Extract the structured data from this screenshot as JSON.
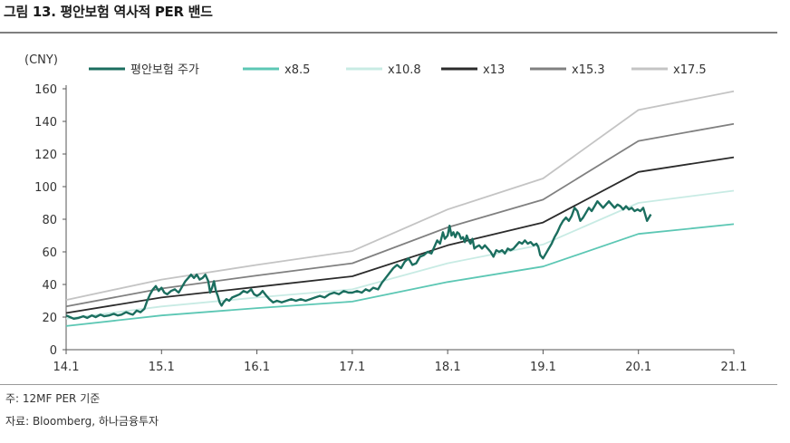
{
  "header": {
    "title": "그림 13. 평안보험 역사적 PER 밴드"
  },
  "notes": {
    "basis": "주: 12MF PER 기준",
    "source": "자료: Bloomberg, 하나금융투자"
  },
  "chart_data": {
    "type": "line",
    "unit_label": "(CNY)",
    "title": "",
    "xlabel": "",
    "ylabel": "",
    "ylim": [
      0,
      160
    ],
    "yticks": [
      0,
      20,
      40,
      60,
      80,
      100,
      120,
      140,
      160
    ],
    "xlim": [
      2014.0,
      2021.0
    ],
    "xticks": [
      {
        "x": 2014.0,
        "label": "14.1"
      },
      {
        "x": 2015.0,
        "label": "15.1"
      },
      {
        "x": 2016.0,
        "label": "16.1"
      },
      {
        "x": 2017.0,
        "label": "17.1"
      },
      {
        "x": 2018.0,
        "label": "18.1"
      },
      {
        "x": 2019.0,
        "label": "19.1"
      },
      {
        "x": 2020.0,
        "label": "20.1"
      },
      {
        "x": 2021.0,
        "label": "21.1"
      }
    ],
    "grid": false,
    "legend_position": "top",
    "series": [
      {
        "name": "평안보험 주가",
        "color": "#1b6e5f",
        "width": 2.4,
        "points": [
          [
            2014.0,
            21
          ],
          [
            2014.04,
            20
          ],
          [
            2014.08,
            19
          ],
          [
            2014.13,
            19.5
          ],
          [
            2014.18,
            20.5
          ],
          [
            2014.22,
            19.5
          ],
          [
            2014.27,
            21
          ],
          [
            2014.31,
            20
          ],
          [
            2014.36,
            21.5
          ],
          [
            2014.4,
            20.5
          ],
          [
            2014.45,
            21
          ],
          [
            2014.5,
            22
          ],
          [
            2014.54,
            21
          ],
          [
            2014.58,
            21.5
          ],
          [
            2014.63,
            23
          ],
          [
            2014.67,
            22
          ],
          [
            2014.7,
            21.5
          ],
          [
            2014.74,
            24
          ],
          [
            2014.78,
            23
          ],
          [
            2014.82,
            25
          ],
          [
            2014.85,
            30
          ],
          [
            2014.88,
            34
          ],
          [
            2014.91,
            37
          ],
          [
            2014.94,
            39
          ],
          [
            2014.97,
            36
          ],
          [
            2015.0,
            38
          ],
          [
            2015.03,
            35
          ],
          [
            2015.06,
            34
          ],
          [
            2015.1,
            36
          ],
          [
            2015.14,
            37
          ],
          [
            2015.18,
            35
          ],
          [
            2015.22,
            39
          ],
          [
            2015.25,
            42
          ],
          [
            2015.28,
            44
          ],
          [
            2015.31,
            46
          ],
          [
            2015.34,
            44
          ],
          [
            2015.37,
            46
          ],
          [
            2015.4,
            43
          ],
          [
            2015.43,
            44
          ],
          [
            2015.46,
            46
          ],
          [
            2015.49,
            42
          ],
          [
            2015.51,
            35
          ],
          [
            2015.53,
            38
          ],
          [
            2015.55,
            42
          ],
          [
            2015.57,
            36
          ],
          [
            2015.59,
            33
          ],
          [
            2015.61,
            29
          ],
          [
            2015.63,
            27
          ],
          [
            2015.65,
            29
          ],
          [
            2015.68,
            31
          ],
          [
            2015.71,
            30
          ],
          [
            2015.74,
            32
          ],
          [
            2015.78,
            33
          ],
          [
            2015.82,
            34
          ],
          [
            2015.86,
            36
          ],
          [
            2015.9,
            35
          ],
          [
            2015.94,
            37
          ],
          [
            2015.97,
            34
          ],
          [
            2016.0,
            33
          ],
          [
            2016.03,
            34
          ],
          [
            2016.06,
            36
          ],
          [
            2016.1,
            33
          ],
          [
            2016.13,
            31
          ],
          [
            2016.17,
            29
          ],
          [
            2016.21,
            30
          ],
          [
            2016.26,
            29
          ],
          [
            2016.31,
            30
          ],
          [
            2016.36,
            31
          ],
          [
            2016.41,
            30
          ],
          [
            2016.46,
            31
          ],
          [
            2016.51,
            30
          ],
          [
            2016.56,
            31
          ],
          [
            2016.61,
            32
          ],
          [
            2016.66,
            33
          ],
          [
            2016.71,
            32
          ],
          [
            2016.76,
            34
          ],
          [
            2016.81,
            35
          ],
          [
            2016.86,
            34
          ],
          [
            2016.91,
            36
          ],
          [
            2016.96,
            35
          ],
          [
            2017.0,
            35
          ],
          [
            2017.05,
            36
          ],
          [
            2017.1,
            35
          ],
          [
            2017.14,
            37
          ],
          [
            2017.18,
            36
          ],
          [
            2017.22,
            38
          ],
          [
            2017.27,
            37
          ],
          [
            2017.31,
            41
          ],
          [
            2017.35,
            44
          ],
          [
            2017.39,
            47
          ],
          [
            2017.43,
            50
          ],
          [
            2017.47,
            52
          ],
          [
            2017.51,
            50
          ],
          [
            2017.55,
            54
          ],
          [
            2017.59,
            56
          ],
          [
            2017.63,
            52
          ],
          [
            2017.67,
            53
          ],
          [
            2017.71,
            57
          ],
          [
            2017.75,
            58
          ],
          [
            2017.79,
            60
          ],
          [
            2017.83,
            59
          ],
          [
            2017.86,
            63
          ],
          [
            2017.89,
            67
          ],
          [
            2017.92,
            65
          ],
          [
            2017.95,
            72
          ],
          [
            2017.97,
            68
          ],
          [
            2018.0,
            70
          ],
          [
            2018.02,
            76
          ],
          [
            2018.04,
            70
          ],
          [
            2018.06,
            72
          ],
          [
            2018.08,
            69
          ],
          [
            2018.1,
            72
          ],
          [
            2018.12,
            71
          ],
          [
            2018.14,
            68
          ],
          [
            2018.16,
            69
          ],
          [
            2018.18,
            66
          ],
          [
            2018.2,
            70
          ],
          [
            2018.22,
            67
          ],
          [
            2018.24,
            65
          ],
          [
            2018.26,
            68
          ],
          [
            2018.28,
            62
          ],
          [
            2018.3,
            63
          ],
          [
            2018.33,
            64
          ],
          [
            2018.36,
            62
          ],
          [
            2018.39,
            64
          ],
          [
            2018.42,
            62
          ],
          [
            2018.45,
            60
          ],
          [
            2018.48,
            57
          ],
          [
            2018.51,
            61
          ],
          [
            2018.54,
            60
          ],
          [
            2018.57,
            61
          ],
          [
            2018.6,
            59
          ],
          [
            2018.63,
            62
          ],
          [
            2018.66,
            61
          ],
          [
            2018.69,
            62
          ],
          [
            2018.72,
            64
          ],
          [
            2018.75,
            66
          ],
          [
            2018.78,
            65
          ],
          [
            2018.81,
            67
          ],
          [
            2018.84,
            65
          ],
          [
            2018.87,
            66
          ],
          [
            2018.9,
            64
          ],
          [
            2018.93,
            65
          ],
          [
            2018.95,
            63
          ],
          [
            2018.97,
            58
          ],
          [
            2019.0,
            56
          ],
          [
            2019.03,
            59
          ],
          [
            2019.06,
            62
          ],
          [
            2019.09,
            65
          ],
          [
            2019.12,
            69
          ],
          [
            2019.15,
            72
          ],
          [
            2019.18,
            76
          ],
          [
            2019.21,
            79
          ],
          [
            2019.24,
            81
          ],
          [
            2019.27,
            79
          ],
          [
            2019.3,
            82
          ],
          [
            2019.33,
            87
          ],
          [
            2019.36,
            85
          ],
          [
            2019.39,
            79
          ],
          [
            2019.42,
            81
          ],
          [
            2019.45,
            84
          ],
          [
            2019.48,
            87
          ],
          [
            2019.51,
            85
          ],
          [
            2019.54,
            88
          ],
          [
            2019.57,
            91
          ],
          [
            2019.6,
            89
          ],
          [
            2019.63,
            87
          ],
          [
            2019.66,
            89
          ],
          [
            2019.69,
            91
          ],
          [
            2019.72,
            89
          ],
          [
            2019.75,
            87
          ],
          [
            2019.78,
            89
          ],
          [
            2019.81,
            88
          ],
          [
            2019.84,
            86
          ],
          [
            2019.87,
            88
          ],
          [
            2019.9,
            86
          ],
          [
            2019.93,
            87
          ],
          [
            2019.96,
            85
          ],
          [
            2019.99,
            86
          ],
          [
            2020.02,
            85
          ],
          [
            2020.05,
            87
          ],
          [
            2020.07,
            83
          ],
          [
            2020.09,
            79
          ],
          [
            2020.11,
            81
          ],
          [
            2020.13,
            83
          ]
        ]
      },
      {
        "name": "x8.5",
        "color": "#5cc7b4",
        "width": 1.8,
        "points": [
          [
            2014,
            14.5
          ],
          [
            2015,
            21
          ],
          [
            2016,
            25.5
          ],
          [
            2017,
            29.5
          ],
          [
            2018,
            41.5
          ],
          [
            2019,
            51
          ],
          [
            2020,
            71
          ],
          [
            2021,
            77
          ]
        ]
      },
      {
        "name": "x10.8",
        "color": "#c8ebe4",
        "width": 1.8,
        "points": [
          [
            2014,
            19
          ],
          [
            2015,
            26.5
          ],
          [
            2016,
            32
          ],
          [
            2017,
            37
          ],
          [
            2018,
            53
          ],
          [
            2019,
            64.5
          ],
          [
            2020,
            90
          ],
          [
            2021,
            97.5
          ]
        ]
      },
      {
        "name": "x13",
        "color": "#2b2b2b",
        "width": 1.8,
        "points": [
          [
            2014,
            22.5
          ],
          [
            2015,
            32
          ],
          [
            2016,
            38.5
          ],
          [
            2017,
            45
          ],
          [
            2018,
            64
          ],
          [
            2019,
            78
          ],
          [
            2020,
            109
          ],
          [
            2021,
            118
          ]
        ]
      },
      {
        "name": "x15.3",
        "color": "#808080",
        "width": 1.8,
        "points": [
          [
            2014,
            26.5
          ],
          [
            2015,
            37.5
          ],
          [
            2016,
            45.5
          ],
          [
            2017,
            53
          ],
          [
            2018,
            75
          ],
          [
            2019,
            92
          ],
          [
            2020,
            128
          ],
          [
            2021,
            138.5
          ]
        ]
      },
      {
        "name": "x17.5",
        "color": "#c4c4c4",
        "width": 1.8,
        "points": [
          [
            2014,
            30.5
          ],
          [
            2015,
            43
          ],
          [
            2016,
            52
          ],
          [
            2017,
            60.5
          ],
          [
            2018,
            86
          ],
          [
            2019,
            105
          ],
          [
            2020,
            147
          ],
          [
            2021,
            158.5
          ]
        ]
      }
    ]
  }
}
